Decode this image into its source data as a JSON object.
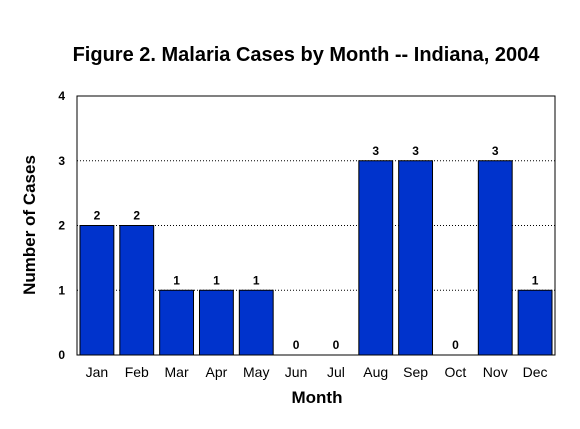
{
  "chart_data": {
    "type": "bar",
    "title": "Figure 2. Malaria Cases by Month -- Indiana, 2004",
    "xlabel": "Month",
    "ylabel": "Number of Cases",
    "categories": [
      "Jan",
      "Feb",
      "Mar",
      "Apr",
      "May",
      "Jun",
      "Jul",
      "Aug",
      "Sep",
      "Oct",
      "Nov",
      "Dec"
    ],
    "values": [
      2,
      2,
      1,
      1,
      1,
      0,
      0,
      3,
      3,
      0,
      3,
      1
    ],
    "ylim": [
      0,
      4
    ],
    "yticks": [
      0,
      1,
      2,
      3,
      4
    ],
    "grid": "horizontal-dotted",
    "data_labels": true,
    "bar_color": "#0033CC",
    "bar_edge_color": "#000000"
  }
}
